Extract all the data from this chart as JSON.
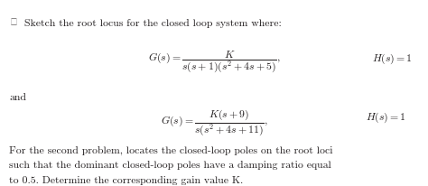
{
  "bullet_text": "Sketch the root locus for the closed loop system where:",
  "eq1": "$G(s) = \\dfrac{K}{s(s+1)(s^2+4s+5)},$",
  "eq1_H": "$H(s) = 1$",
  "and_text": "and",
  "eq2": "$G(s) = \\dfrac{K(s+9)}{s(s^2+4s+11)},$",
  "eq2_H": "$H(s) = 1$",
  "body_line1": "For the second problem, locates the closed-loop poles on the root loci",
  "body_line2": "such that the dominant closed-loop poles have a damping ratio equal",
  "body_line3": "to 0.5. Determine the corresponding gain value K.",
  "bg_color": "#ffffff",
  "text_color": "#231f20",
  "fs_text": 8.5,
  "fs_eq": 8.5
}
